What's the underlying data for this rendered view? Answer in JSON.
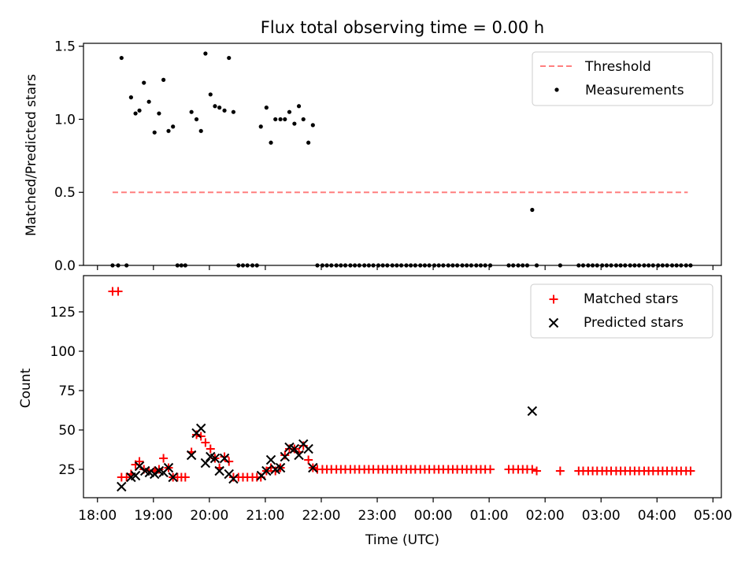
{
  "figure": {
    "title": "Flux total observing time = 0.00 h",
    "xlabel": "Time (UTC)",
    "x_ticks": [
      "18:00",
      "19:00",
      "20:00",
      "21:00",
      "22:00",
      "23:00",
      "00:00",
      "01:00",
      "02:00",
      "03:00",
      "04:00",
      "05:00"
    ]
  },
  "colors": {
    "threshold": "#ff7f7f",
    "measurements": "#000000",
    "matched": "#ff0000",
    "predicted": "#000000"
  },
  "chart_data": [
    {
      "type": "scatter",
      "panel": "top",
      "title": "Flux total observing time = 0.00 h",
      "xlabel": "",
      "ylabel": "Matched/Predicted stars",
      "x_unit": "hours after 18:00 UTC",
      "xlim_hours": [
        -0.25,
        11.15
      ],
      "ylim": [
        0,
        1.52
      ],
      "y_ticks": [
        "0.0",
        "0.5",
        "1.0",
        "1.5"
      ],
      "y_tick_values": [
        0,
        0.5,
        1.0,
        1.5
      ],
      "legend": {
        "position": "top-right",
        "entries": [
          "Threshold",
          "Measurements"
        ]
      },
      "series": [
        {
          "name": "Threshold",
          "style": "dashed-line",
          "x": [
            0.27,
            10.55
          ],
          "y": [
            0.5,
            0.5
          ]
        },
        {
          "name": "Measurements",
          "style": "dot",
          "x": [
            0.27,
            0.37,
            0.43,
            0.52,
            0.6,
            0.68,
            0.75,
            0.83,
            0.92,
            1.02,
            1.1,
            1.18,
            1.27,
            1.35,
            1.43,
            1.5,
            1.57,
            1.68,
            1.77,
            1.85,
            1.93,
            2.02,
            2.1,
            2.18,
            2.27,
            2.35,
            2.43,
            2.52,
            2.6,
            2.68,
            2.77,
            2.85,
            2.92,
            3.02,
            3.1,
            3.18,
            3.27,
            3.35,
            3.43,
            3.52,
            3.6,
            3.68,
            3.77,
            3.85,
            3.93,
            4.02,
            4.1,
            4.18,
            4.27,
            4.35,
            4.43,
            4.52,
            4.6,
            4.68,
            4.77,
            4.85,
            4.93,
            5.02,
            5.1,
            5.18,
            5.27,
            5.35,
            5.43,
            5.52,
            5.6,
            5.68,
            5.77,
            5.85,
            5.93,
            6.02,
            6.1,
            6.18,
            6.27,
            6.35,
            6.43,
            6.52,
            6.6,
            6.68,
            6.77,
            6.85,
            6.93,
            7.02,
            7.35,
            7.43,
            7.52,
            7.6,
            7.68,
            7.77,
            7.85,
            8.27,
            8.6,
            8.68,
            8.77,
            8.85,
            8.93,
            9.02,
            9.1,
            9.18,
            9.27,
            9.35,
            9.43,
            9.52,
            9.6,
            9.68,
            9.77,
            9.85,
            9.93,
            10.02,
            10.1,
            10.18,
            10.27,
            10.35,
            10.43,
            10.52,
            10.6
          ],
          "y": [
            0,
            0,
            1.42,
            0,
            1.15,
            1.04,
            1.06,
            1.25,
            1.12,
            0.91,
            1.04,
            1.27,
            0.92,
            0.95,
            0,
            0,
            0,
            1.05,
            1.0,
            0.92,
            1.45,
            1.17,
            1.09,
            1.08,
            1.06,
            1.42,
            1.05,
            0,
            0,
            0,
            0,
            0,
            0.95,
            1.08,
            0.84,
            1.0,
            1.0,
            1.0,
            1.05,
            0.97,
            1.09,
            1.0,
            0.84,
            0.96,
            0,
            0,
            0,
            0,
            0,
            0,
            0,
            0,
            0,
            0,
            0,
            0,
            0,
            0,
            0,
            0,
            0,
            0,
            0,
            0,
            0,
            0,
            0,
            0,
            0,
            0,
            0,
            0,
            0,
            0,
            0,
            0,
            0,
            0,
            0,
            0,
            0,
            0,
            0,
            0,
            0,
            0,
            0,
            0.38,
            0,
            0,
            0,
            0,
            0,
            0,
            0,
            0,
            0,
            0,
            0,
            0,
            0,
            0,
            0,
            0,
            0,
            0,
            0,
            0,
            0,
            0,
            0,
            0,
            0,
            0,
            0
          ]
        }
      ]
    },
    {
      "type": "scatter",
      "panel": "bottom",
      "xlabel": "Time (UTC)",
      "ylabel": "Count",
      "x_unit": "hours after 18:00 UTC",
      "xlim_hours": [
        -0.25,
        11.15
      ],
      "ylim": [
        7,
        148
      ],
      "y_ticks": [
        "25",
        "50",
        "75",
        "100",
        "125"
      ],
      "y_tick_values": [
        25,
        50,
        75,
        100,
        125
      ],
      "legend": {
        "position": "top-right",
        "entries": [
          "Matched stars",
          "Predicted stars"
        ]
      },
      "series": [
        {
          "name": "Matched stars",
          "marker": "plus",
          "x": [
            0.27,
            0.37,
            0.43,
            0.52,
            0.6,
            0.68,
            0.75,
            0.83,
            0.92,
            1.02,
            1.1,
            1.18,
            1.27,
            1.35,
            1.43,
            1.5,
            1.57,
            1.68,
            1.77,
            1.85,
            1.93,
            2.02,
            2.1,
            2.18,
            2.27,
            2.35,
            2.43,
            2.52,
            2.6,
            2.68,
            2.77,
            2.85,
            2.92,
            3.02,
            3.1,
            3.18,
            3.27,
            3.35,
            3.43,
            3.52,
            3.6,
            3.68,
            3.77,
            3.85,
            3.93,
            4.02,
            4.1,
            4.18,
            4.27,
            4.35,
            4.43,
            4.52,
            4.6,
            4.68,
            4.77,
            4.85,
            4.93,
            5.02,
            5.1,
            5.18,
            5.27,
            5.35,
            5.43,
            5.52,
            5.6,
            5.68,
            5.77,
            5.85,
            5.93,
            6.02,
            6.1,
            6.18,
            6.27,
            6.35,
            6.43,
            6.52,
            6.6,
            6.68,
            6.77,
            6.85,
            6.93,
            7.02,
            7.35,
            7.43,
            7.52,
            7.6,
            7.68,
            7.77,
            7.85,
            8.27,
            8.6,
            8.68,
            8.77,
            8.85,
            8.93,
            9.02,
            9.1,
            9.18,
            9.27,
            9.35,
            9.43,
            9.52,
            9.6,
            9.68,
            9.77,
            9.85,
            9.93,
            10.02,
            10.1,
            10.18,
            10.27,
            10.35,
            10.43,
            10.52,
            10.6
          ],
          "y": [
            138,
            138,
            20,
            20,
            22,
            28,
            30,
            25,
            24,
            24,
            25,
            32,
            26,
            20,
            20,
            20,
            20,
            36,
            47,
            46,
            42,
            38,
            32,
            26,
            33,
            30,
            20,
            20,
            20,
            20,
            20,
            20,
            20,
            24,
            26,
            24,
            26,
            34,
            38,
            38,
            36,
            40,
            31,
            26,
            25,
            25,
            25,
            25,
            25,
            25,
            25,
            25,
            25,
            25,
            25,
            25,
            25,
            25,
            25,
            25,
            25,
            25,
            25,
            25,
            25,
            25,
            25,
            25,
            25,
            25,
            25,
            25,
            25,
            25,
            25,
            25,
            25,
            25,
            25,
            25,
            25,
            25,
            25,
            25,
            25,
            25,
            25,
            25,
            24,
            24,
            24,
            24,
            24,
            24,
            24,
            24,
            24,
            24,
            24,
            24,
            24,
            24,
            24,
            24,
            24,
            24,
            24,
            24,
            24,
            24,
            24,
            24,
            24,
            24,
            24
          ]
        },
        {
          "name": "Predicted stars",
          "marker": "x",
          "x": [
            0.43,
            0.6,
            0.68,
            0.75,
            0.85,
            0.93,
            1.02,
            1.1,
            1.18,
            1.27,
            1.35,
            1.68,
            1.77,
            1.85,
            1.93,
            2.02,
            2.1,
            2.18,
            2.27,
            2.35,
            2.43,
            2.93,
            3.02,
            3.1,
            3.18,
            3.27,
            3.35,
            3.43,
            3.52,
            3.6,
            3.68,
            3.77,
            3.85,
            7.77
          ],
          "y": [
            14,
            20,
            21,
            27,
            24,
            23,
            22,
            24,
            23,
            26,
            20,
            34,
            48,
            51,
            29,
            33,
            32,
            24,
            32,
            22,
            19,
            21,
            24,
            31,
            25,
            26,
            33,
            39,
            38,
            34,
            41,
            38,
            26,
            62
          ]
        }
      ]
    }
  ]
}
